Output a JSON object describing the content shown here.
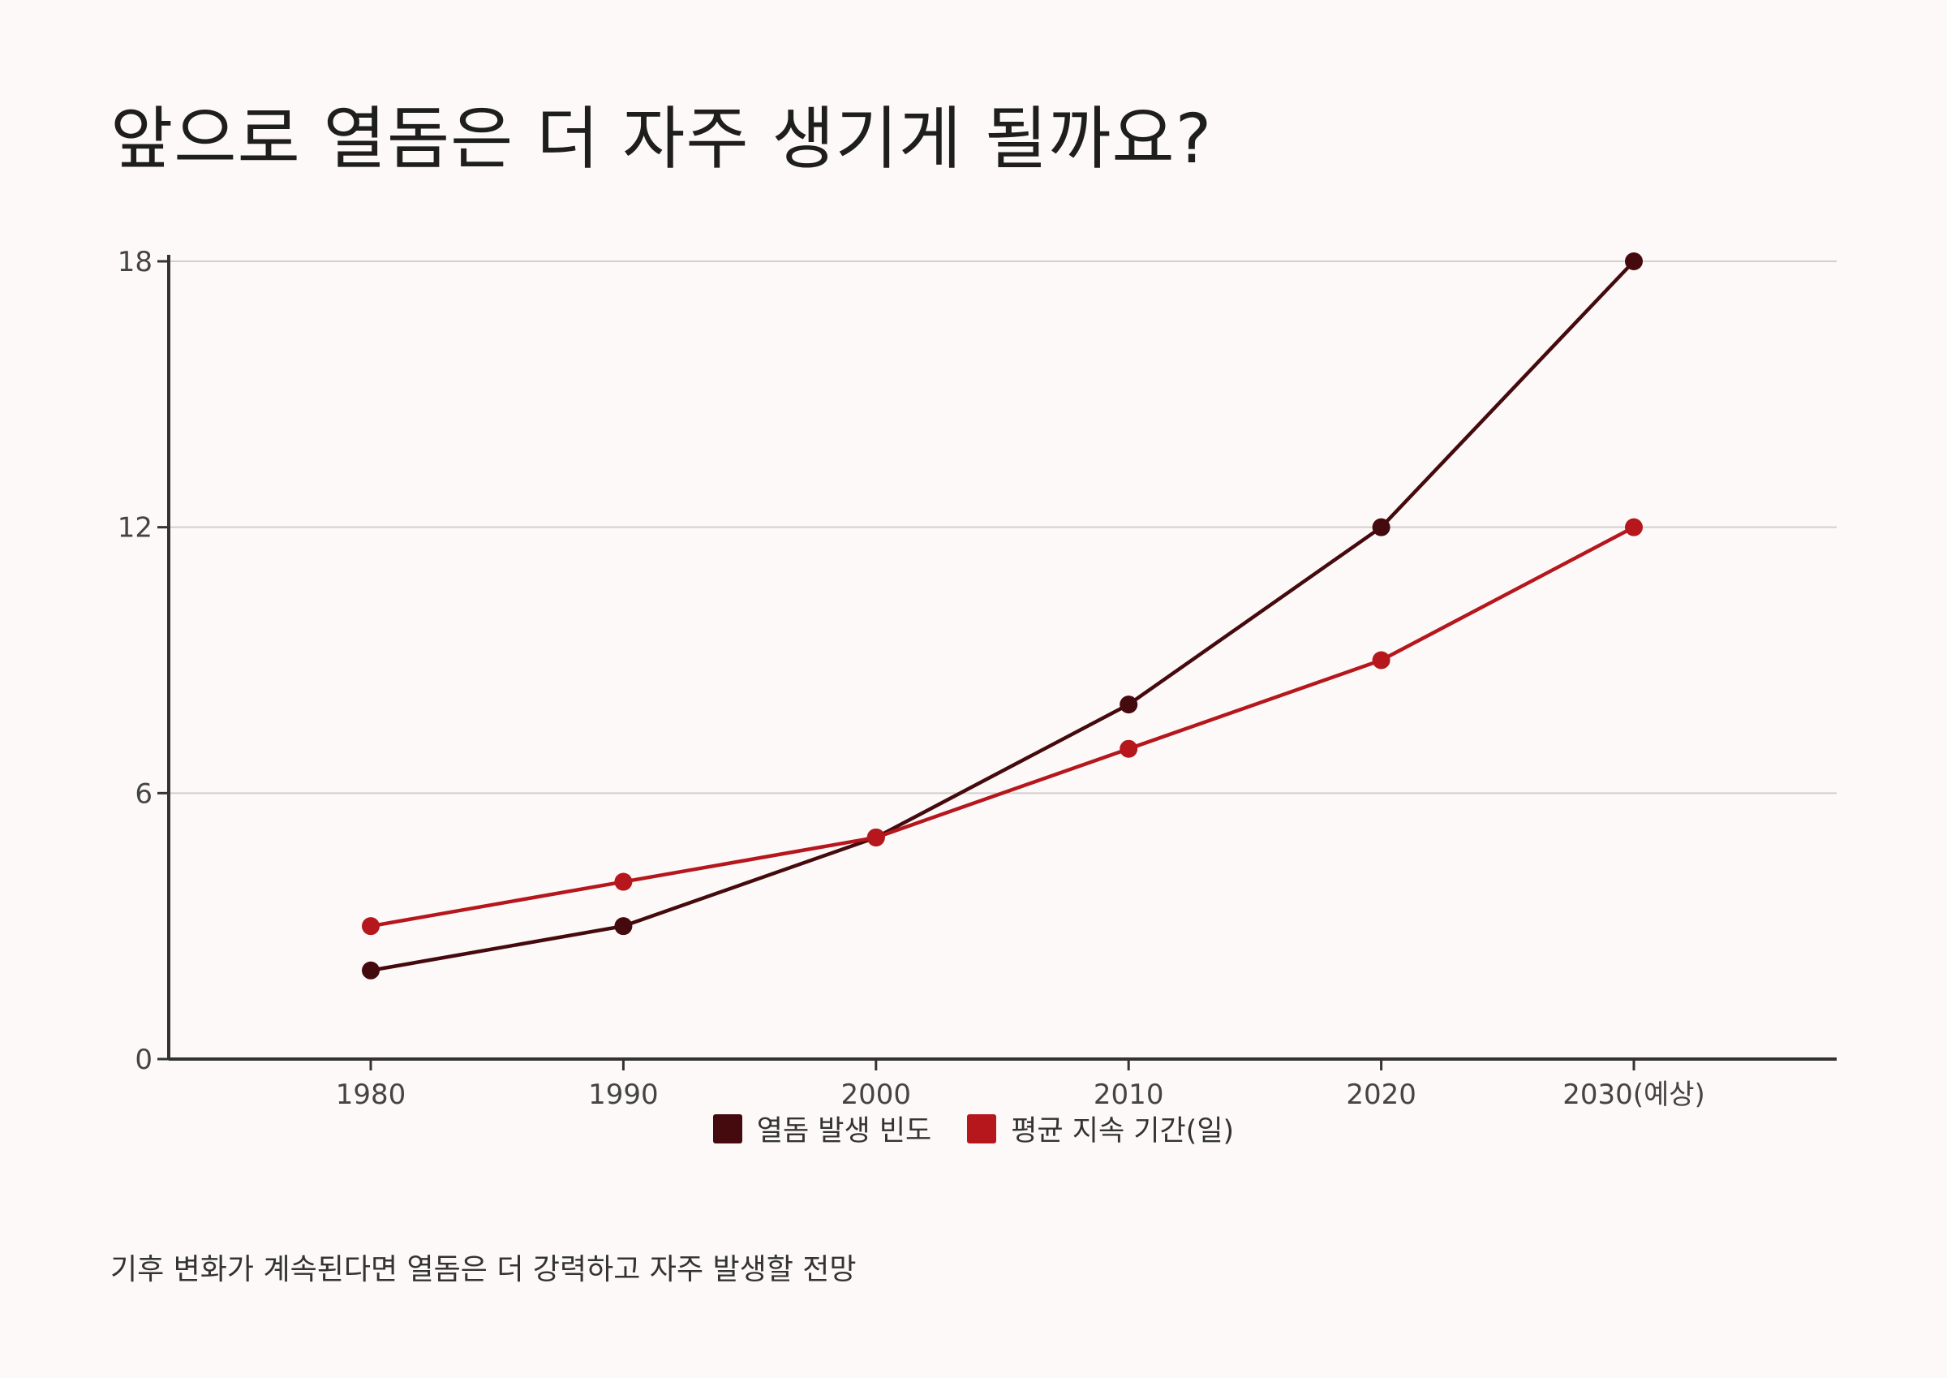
{
  "title": "앞으로 열돔은 더 자주 생기게 될까요?",
  "footnote": "기후 변화가 계속된다면 열돔은 더 강력하고 자주 발생할 전망",
  "chart_data": {
    "type": "line",
    "categories": [
      "1980",
      "1990",
      "2000",
      "2010",
      "2020",
      "2030(예상)"
    ],
    "series": [
      {
        "name": "열돔 발생 빈도",
        "color": "#450a0d",
        "values": [
          2,
          3,
          5,
          8,
          12,
          18
        ]
      },
      {
        "name": "평균 지속 기간(일)",
        "color": "#b5171d",
        "values": [
          3,
          4,
          5,
          7,
          9,
          12
        ]
      }
    ],
    "yticks": [
      "0",
      "6",
      "12",
      "18"
    ],
    "ylim": [
      0,
      18
    ],
    "grid": true,
    "legend_position": "bottom"
  }
}
